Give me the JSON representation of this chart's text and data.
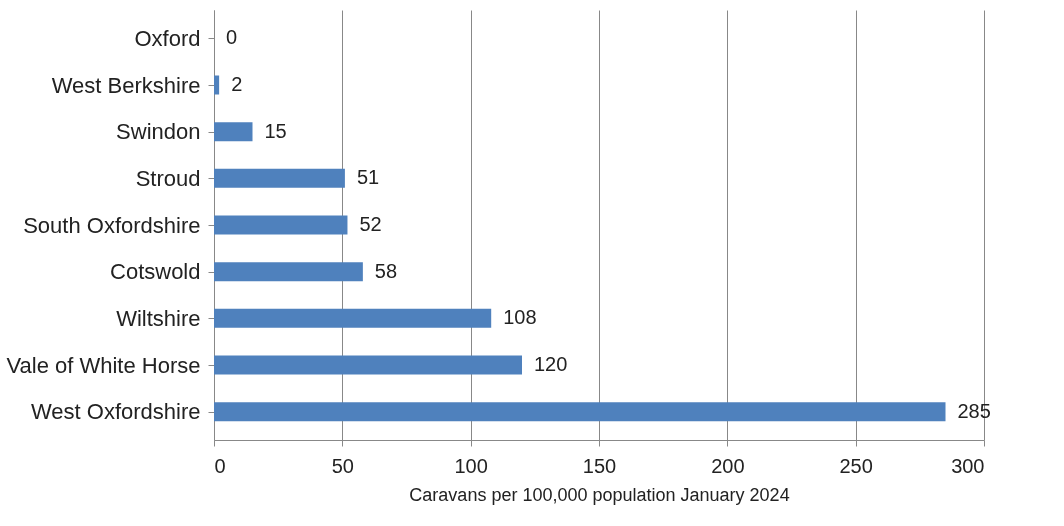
{
  "chart_data": {
    "type": "bar",
    "orientation": "horizontal",
    "xlabel": "Caravans per 100,000 population January 2024",
    "categories": [
      "Oxford",
      "West Berkshire",
      "Swindon",
      "Stroud",
      "South Oxfordshire",
      "Cotswold",
      "Wiltshire",
      "Vale of White Horse",
      "West Oxfordshire"
    ],
    "values": [
      0,
      2,
      15,
      51,
      52,
      58,
      108,
      120,
      285
    ],
    "color": "#4f81bd",
    "xlim": [
      0,
      300
    ],
    "xticks": [
      0,
      50,
      100,
      150,
      200,
      250,
      300
    ],
    "grid": "x",
    "data_labels": true
  }
}
